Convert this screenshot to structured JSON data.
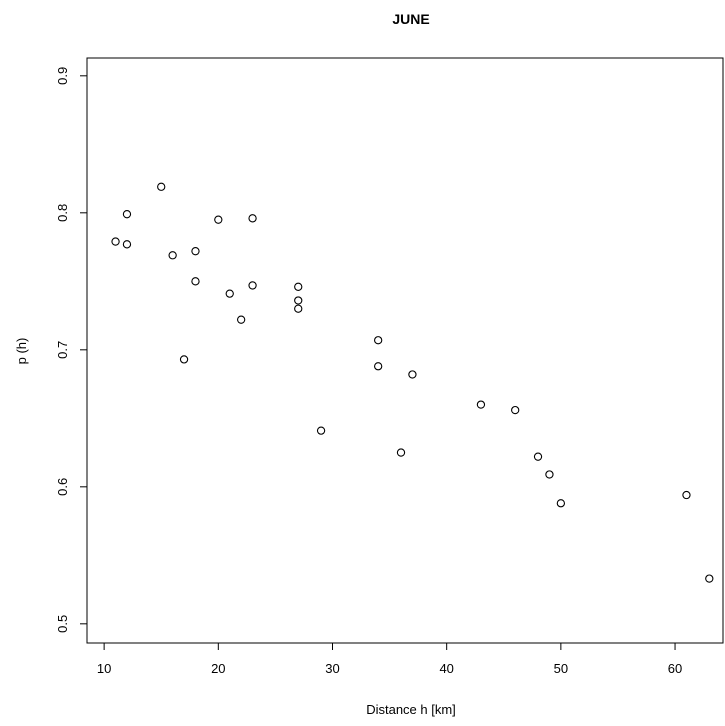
{
  "chart_data": {
    "type": "scatter",
    "title": "JUNE",
    "xlabel": "Distance h [km]",
    "ylabel": "p (h)",
    "xlim": [
      8.5,
      64.2
    ],
    "ylim": [
      0.486,
      0.913
    ],
    "x_ticks": [
      10,
      20,
      30,
      40,
      50,
      60
    ],
    "x_tick_labels": [
      "10",
      "20",
      "30",
      "40",
      "50",
      "60"
    ],
    "y_ticks": [
      0.5,
      0.6,
      0.7,
      0.8,
      0.9
    ],
    "y_tick_labels": [
      "0.5",
      "0.6",
      "0.7",
      "0.8",
      "0.9"
    ],
    "grid": false,
    "legend": "none",
    "marker": "open-circle",
    "colors": {
      "marker": "#000000",
      "axis": "#000000",
      "background": "#ffffff"
    },
    "points": [
      {
        "x": 11,
        "y": 0.779
      },
      {
        "x": 12,
        "y": 0.799
      },
      {
        "x": 12,
        "y": 0.777
      },
      {
        "x": 15,
        "y": 0.819
      },
      {
        "x": 16,
        "y": 0.769
      },
      {
        "x": 17,
        "y": 0.693
      },
      {
        "x": 18,
        "y": 0.772
      },
      {
        "x": 18,
        "y": 0.75
      },
      {
        "x": 20,
        "y": 0.795
      },
      {
        "x": 21,
        "y": 0.741
      },
      {
        "x": 22,
        "y": 0.722
      },
      {
        "x": 23,
        "y": 0.796
      },
      {
        "x": 23,
        "y": 0.747
      },
      {
        "x": 27,
        "y": 0.746
      },
      {
        "x": 27,
        "y": 0.736
      },
      {
        "x": 27,
        "y": 0.73
      },
      {
        "x": 29,
        "y": 0.641
      },
      {
        "x": 34,
        "y": 0.707
      },
      {
        "x": 34,
        "y": 0.688
      },
      {
        "x": 36,
        "y": 0.625
      },
      {
        "x": 37,
        "y": 0.682
      },
      {
        "x": 43,
        "y": 0.66
      },
      {
        "x": 46,
        "y": 0.656
      },
      {
        "x": 48,
        "y": 0.622
      },
      {
        "x": 49,
        "y": 0.609
      },
      {
        "x": 50,
        "y": 0.588
      },
      {
        "x": 61,
        "y": 0.594
      },
      {
        "x": 63,
        "y": 0.533
      }
    ]
  }
}
